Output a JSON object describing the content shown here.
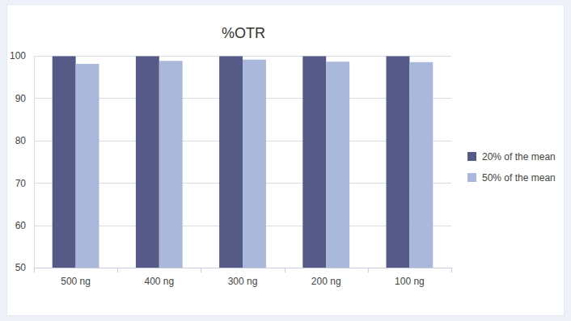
{
  "chart_data": {
    "type": "bar",
    "title": "%OTR",
    "categories": [
      "500 ng",
      "400 ng",
      "300 ng",
      "200 ng",
      "100 ng"
    ],
    "series": [
      {
        "name": "20% of the mean",
        "color": "#555a87",
        "values": [
          99.9,
          99.9,
          99.9,
          99.9,
          99.9
        ]
      },
      {
        "name": "50% of the mean",
        "color": "#a9b8db",
        "values": [
          98.1,
          98.8,
          99.1,
          98.6,
          98.5
        ]
      }
    ],
    "ylim": [
      50,
      100
    ],
    "yticks": [
      50,
      60,
      70,
      80,
      90,
      100
    ],
    "grid": true,
    "legend": "right"
  }
}
